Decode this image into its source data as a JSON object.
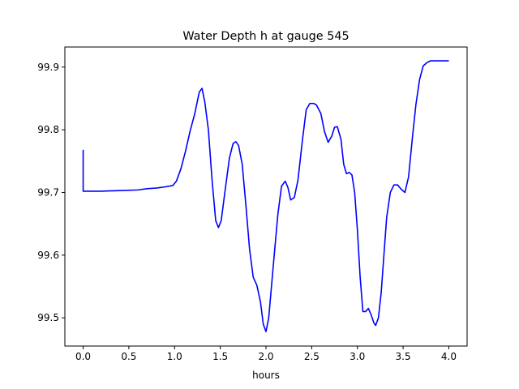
{
  "chart_data": {
    "type": "line",
    "title": "Water Depth h at gauge 545",
    "xlabel": "hours",
    "ylabel": "",
    "xlim": [
      -0.2,
      4.2
    ],
    "ylim": [
      99.455,
      99.932
    ],
    "xticks": [
      0.0,
      0.5,
      1.0,
      1.5,
      2.0,
      2.5,
      3.0,
      3.5,
      4.0
    ],
    "xtick_labels": [
      "0.0",
      "0.5",
      "1.0",
      "1.5",
      "2.0",
      "2.5",
      "3.0",
      "3.5",
      "4.0"
    ],
    "yticks": [
      99.5,
      99.6,
      99.7,
      99.8,
      99.9
    ],
    "ytick_labels": [
      "99.5",
      "99.6",
      "99.7",
      "99.8",
      "99.9"
    ],
    "grid": false,
    "legend": "none",
    "series": [
      {
        "color": "#0000ff",
        "x": [
          0.0,
          0.0,
          0.05,
          0.2,
          0.4,
          0.6,
          0.7,
          0.8,
          0.9,
          0.98,
          1.02,
          1.07,
          1.12,
          1.17,
          1.22,
          1.27,
          1.3,
          1.33,
          1.37,
          1.41,
          1.45,
          1.48,
          1.51,
          1.55,
          1.6,
          1.64,
          1.67,
          1.7,
          1.74,
          1.78,
          1.82,
          1.86,
          1.9,
          1.94,
          1.97,
          2.0,
          2.03,
          2.06,
          2.09,
          2.13,
          2.17,
          2.21,
          2.24,
          2.27,
          2.31,
          2.35,
          2.4,
          2.44,
          2.48,
          2.52,
          2.55,
          2.6,
          2.64,
          2.68,
          2.72,
          2.75,
          2.78,
          2.82,
          2.85,
          2.88,
          2.91,
          2.94,
          2.97,
          3.0,
          3.03,
          3.06,
          3.09,
          3.12,
          3.15,
          3.18,
          3.2,
          3.23,
          3.26,
          3.29,
          3.32,
          3.36,
          3.4,
          3.44,
          3.48,
          3.52,
          3.56,
          3.6,
          3.64,
          3.68,
          3.72,
          3.76,
          3.8,
          3.84,
          3.88,
          3.92,
          3.96,
          4.0
        ],
        "y": [
          99.768,
          99.702,
          99.702,
          99.702,
          99.703,
          99.704,
          99.706,
          99.707,
          99.709,
          99.711,
          99.718,
          99.738,
          99.766,
          99.798,
          99.825,
          99.86,
          99.866,
          99.845,
          99.8,
          99.72,
          99.655,
          99.644,
          99.655,
          99.7,
          99.755,
          99.778,
          99.781,
          99.775,
          99.745,
          99.68,
          99.61,
          99.565,
          99.552,
          99.525,
          99.49,
          99.478,
          99.5,
          99.55,
          99.6,
          99.665,
          99.71,
          99.718,
          99.708,
          99.688,
          99.692,
          99.72,
          99.785,
          99.832,
          99.842,
          99.842,
          99.84,
          99.826,
          99.797,
          99.78,
          99.79,
          99.804,
          99.805,
          99.785,
          99.745,
          99.73,
          99.732,
          99.728,
          99.7,
          99.64,
          99.565,
          99.51,
          99.51,
          99.515,
          99.505,
          99.492,
          99.488,
          99.5,
          99.54,
          99.6,
          99.66,
          99.7,
          99.712,
          99.712,
          99.705,
          99.7,
          99.725,
          99.785,
          99.84,
          99.88,
          99.902,
          99.907,
          99.91,
          99.91,
          99.91,
          99.91,
          99.91,
          99.91
        ]
      }
    ]
  }
}
